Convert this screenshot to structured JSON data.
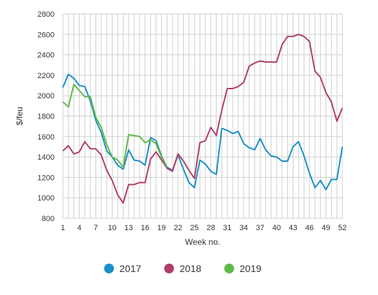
{
  "chart_data": {
    "type": "line",
    "xlabel": "Week no.",
    "ylabel": "$/feu",
    "xlim": [
      1,
      52
    ],
    "ylim": [
      800,
      2800
    ],
    "xticks": [
      1,
      4,
      7,
      10,
      13,
      16,
      19,
      22,
      25,
      28,
      31,
      34,
      37,
      40,
      43,
      46,
      49,
      52
    ],
    "xtick_labels": [
      "1",
      "4",
      "7",
      "10",
      "13",
      "16",
      "19",
      "22",
      "25",
      "28",
      "31",
      "34",
      "37",
      "40",
      "43",
      "46",
      "49",
      "52"
    ],
    "yticks": [
      800,
      1000,
      1200,
      1400,
      1600,
      1800,
      2000,
      2200,
      2400,
      2600,
      2800
    ],
    "ytick_labels": [
      "800",
      "1000",
      "1200",
      "1400",
      "1600",
      "1800",
      "2000",
      "2200",
      "2400",
      "2600",
      "2800"
    ],
    "grid": true,
    "legend_position": "bottom",
    "series": [
      {
        "name": "2017",
        "color": "#1a8fc7",
        "x": [
          1,
          2,
          3,
          4,
          5,
          6,
          7,
          8,
          9,
          10,
          11,
          12,
          13,
          14,
          15,
          16,
          17,
          18,
          19,
          20,
          21,
          22,
          23,
          24,
          25,
          26,
          27,
          28,
          29,
          30,
          31,
          32,
          33,
          34,
          35,
          36,
          37,
          38,
          39,
          40,
          41,
          42,
          43,
          44,
          45,
          46,
          47,
          48,
          49,
          50,
          51,
          52
        ],
        "values": [
          2080,
          2210,
          2170,
          2100,
          2090,
          1950,
          1760,
          1640,
          1460,
          1400,
          1320,
          1280,
          1470,
          1370,
          1360,
          1320,
          1590,
          1560,
          1410,
          1300,
          1270,
          1420,
          1280,
          1150,
          1100,
          1370,
          1330,
          1260,
          1230,
          1680,
          1660,
          1630,
          1650,
          1530,
          1490,
          1470,
          1580,
          1470,
          1410,
          1400,
          1360,
          1360,
          1500,
          1550,
          1410,
          1240,
          1100,
          1170,
          1080,
          1180,
          1180,
          1500
        ]
      },
      {
        "name": "2018",
        "color": "#b03d6b",
        "x": [
          1,
          2,
          3,
          4,
          5,
          6,
          7,
          8,
          9,
          10,
          11,
          12,
          13,
          14,
          15,
          16,
          17,
          18,
          19,
          20,
          21,
          22,
          23,
          24,
          25,
          26,
          27,
          28,
          29,
          30,
          31,
          32,
          33,
          34,
          35,
          36,
          37,
          38,
          39,
          40,
          41,
          42,
          43,
          44,
          45,
          46,
          47,
          48,
          49,
          50,
          51,
          52
        ],
        "values": [
          1460,
          1510,
          1430,
          1450,
          1550,
          1480,
          1480,
          1420,
          1270,
          1170,
          1030,
          950,
          1130,
          1130,
          1150,
          1150,
          1380,
          1450,
          1370,
          1290,
          1260,
          1430,
          1360,
          1270,
          1190,
          1540,
          1560,
          1690,
          1610,
          1860,
          2070,
          2070,
          2090,
          2130,
          2290,
          2320,
          2340,
          2330,
          2330,
          2330,
          2500,
          2580,
          2580,
          2600,
          2580,
          2530,
          2240,
          2180,
          2030,
          1940,
          1750,
          1880
        ]
      },
      {
        "name": "2019",
        "color": "#5dba47",
        "x": [
          1,
          2,
          3,
          4,
          5,
          6,
          7,
          8,
          9,
          10,
          11,
          12,
          13,
          14,
          15,
          16,
          17,
          18,
          19,
          20
        ],
        "values": [
          1940,
          1890,
          2110,
          2050,
          1990,
          1990,
          1790,
          1690,
          1520,
          1400,
          1370,
          1300,
          1620,
          1610,
          1600,
          1540,
          1570,
          1530,
          1400,
          1300
        ]
      }
    ]
  }
}
